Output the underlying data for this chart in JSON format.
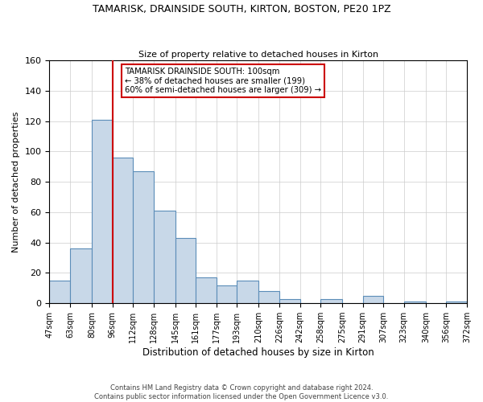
{
  "title": "TAMARISK, DRAINSIDE SOUTH, KIRTON, BOSTON, PE20 1PZ",
  "subtitle": "Size of property relative to detached houses in Kirton",
  "xlabel": "Distribution of detached houses by size in Kirton",
  "ylabel": "Number of detached properties",
  "bar_edges": [
    47,
    63,
    80,
    96,
    112,
    128,
    145,
    161,
    177,
    193,
    210,
    226,
    242,
    258,
    275,
    291,
    307,
    323,
    340,
    356,
    372
  ],
  "bar_heights": [
    15,
    36,
    121,
    96,
    87,
    61,
    43,
    17,
    12,
    15,
    8,
    3,
    0,
    3,
    0,
    5,
    0,
    1,
    0,
    1
  ],
  "bar_color": "#c8d8e8",
  "bar_edge_color": "#5b8db8",
  "vline_x": 96,
  "vline_color": "#cc0000",
  "annotation_title": "TAMARISK DRAINSIDE SOUTH: 100sqm",
  "annotation_line1": "← 38% of detached houses are smaller (199)",
  "annotation_line2": "60% of semi-detached houses are larger (309) →",
  "annotation_box_color": "#ffffff",
  "annotation_box_edge_color": "#cc0000",
  "ylim": [
    0,
    160
  ],
  "yticks": [
    0,
    20,
    40,
    60,
    80,
    100,
    120,
    140,
    160
  ],
  "tick_labels": [
    "47sqm",
    "63sqm",
    "80sqm",
    "96sqm",
    "112sqm",
    "128sqm",
    "145sqm",
    "161sqm",
    "177sqm",
    "193sqm",
    "210sqm",
    "226sqm",
    "242sqm",
    "258sqm",
    "275sqm",
    "291sqm",
    "307sqm",
    "323sqm",
    "340sqm",
    "356sqm",
    "372sqm"
  ],
  "footer_line1": "Contains HM Land Registry data © Crown copyright and database right 2024.",
  "footer_line2": "Contains public sector information licensed under the Open Government Licence v3.0.",
  "background_color": "#ffffff",
  "plot_background": "#ffffff"
}
